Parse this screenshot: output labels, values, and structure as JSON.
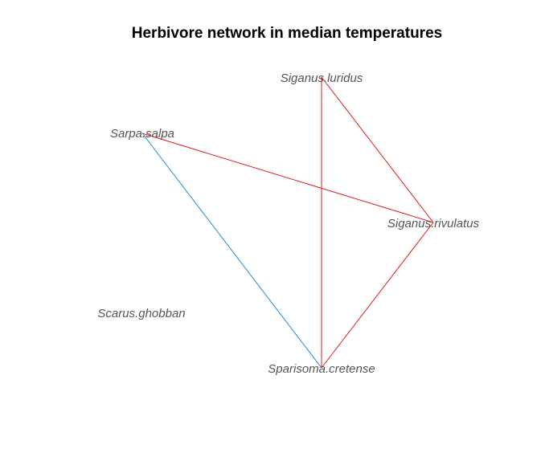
{
  "title": "Herbivore network in median temperatures",
  "nodes": [
    {
      "id": "siganus-luridus",
      "label": "Siganus.luridus"
    },
    {
      "id": "sarpa-salpa",
      "label": "Sarpa.salpa"
    },
    {
      "id": "siganus-rivulatus",
      "label": "Siganus.rivulatus"
    },
    {
      "id": "scarus-ghobban",
      "label": "Scarus.ghobban"
    },
    {
      "id": "sparisoma-cretense",
      "label": "Sparisoma.cretense"
    }
  ],
  "edges": [
    {
      "from": "sarpa-salpa",
      "to": "siganus-rivulatus",
      "color": "#e31a1c"
    },
    {
      "from": "siganus-luridus",
      "to": "siganus-rivulatus",
      "color": "#e31a1c"
    },
    {
      "from": "siganus-luridus",
      "to": "sparisoma-cretense",
      "color": "#e31a1c"
    },
    {
      "from": "siganus-rivulatus",
      "to": "sparisoma-cretense",
      "color": "#e31a1c"
    },
    {
      "from": "sarpa-salpa",
      "to": "sparisoma-cretense",
      "color": "#1f8fd1"
    }
  ]
}
